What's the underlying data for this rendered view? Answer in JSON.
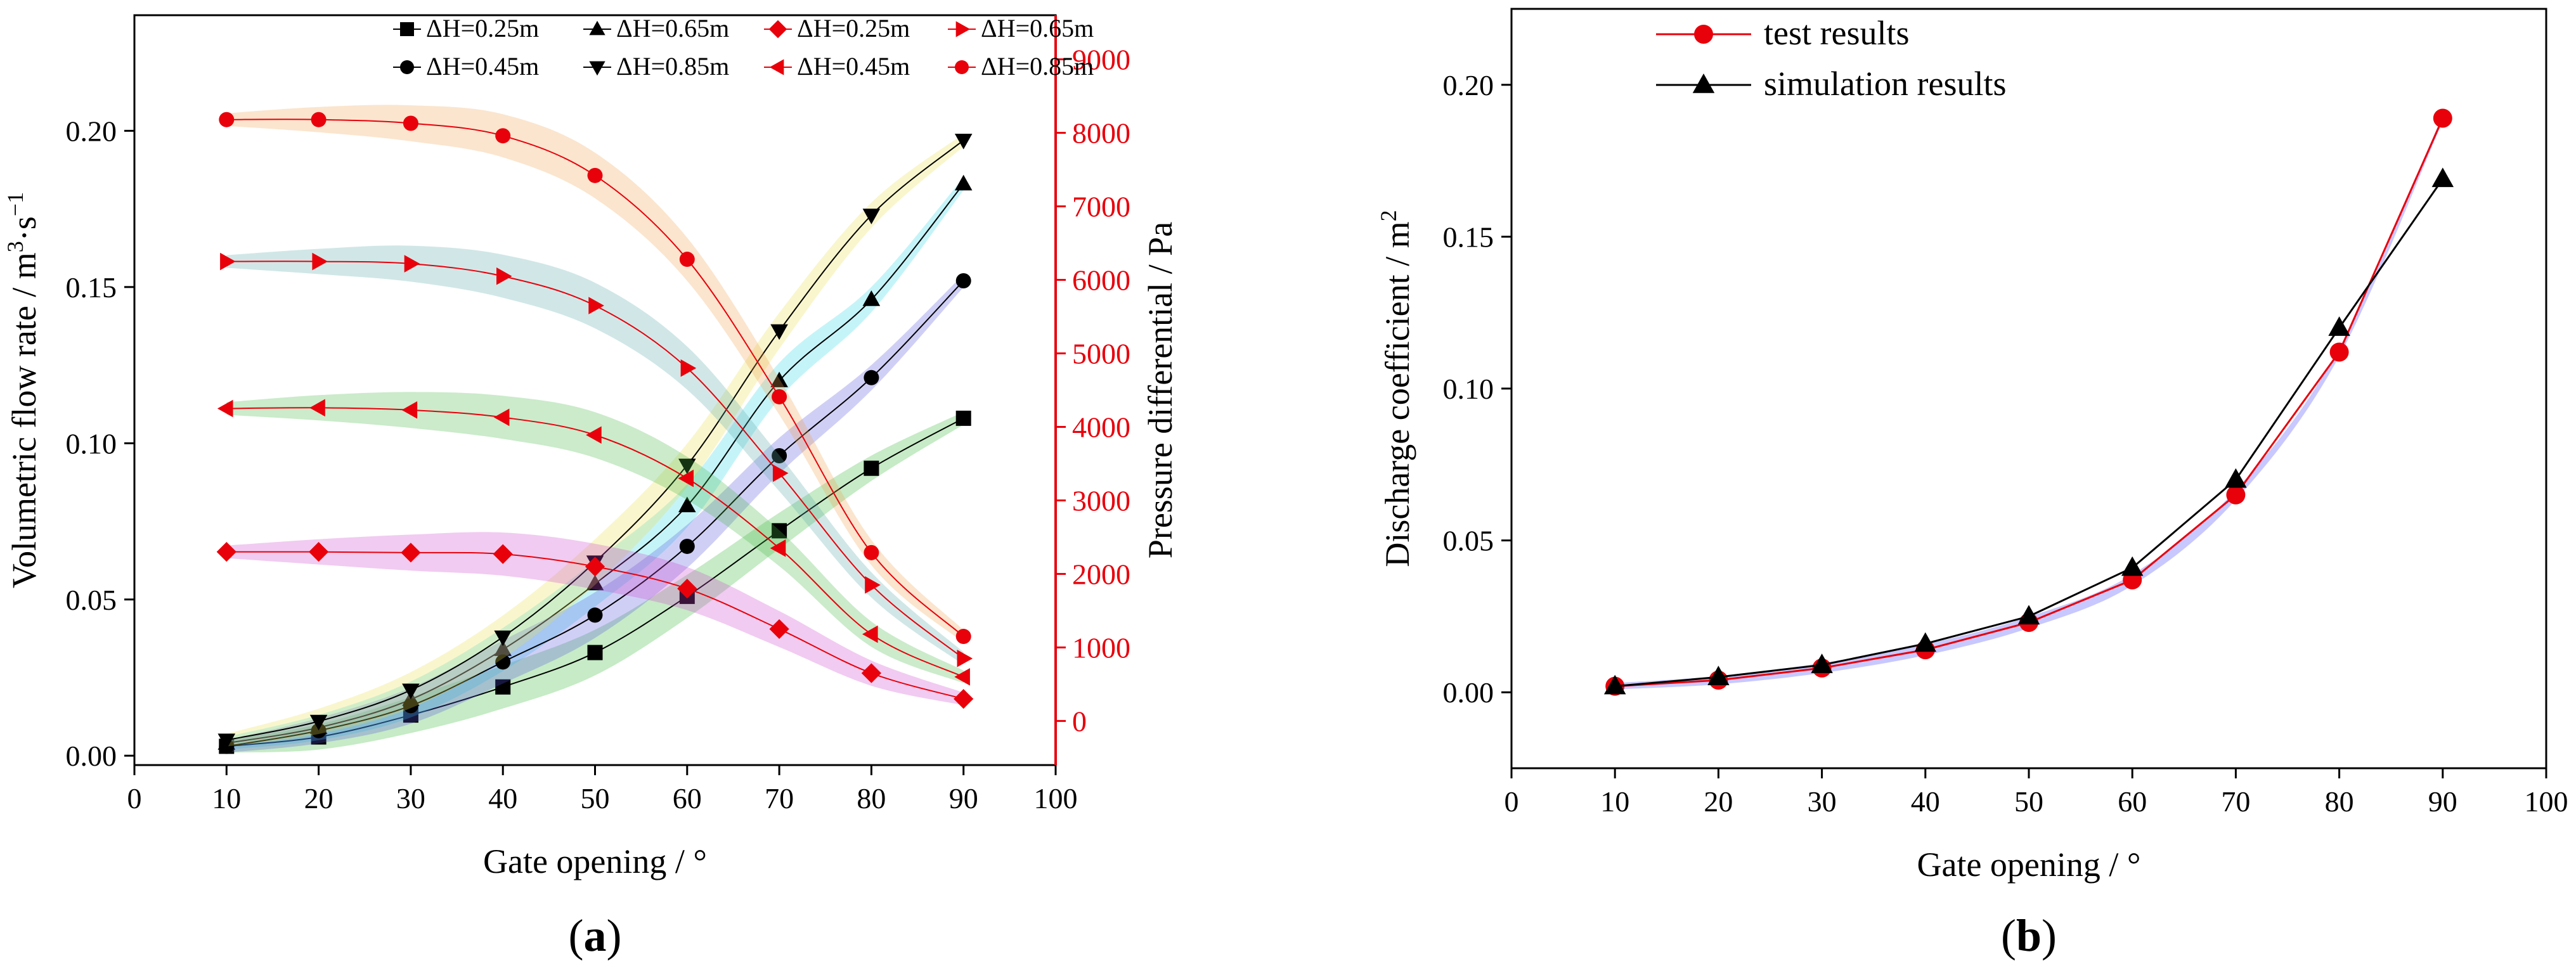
{
  "chart_data": [
    {
      "type": "line",
      "panel_label": {
        "text": "a",
        "open": "(",
        "close": ")"
      },
      "xlabel": "Gate opening / °",
      "ylabel": "Volumetric flow rate / m³·s⁻¹",
      "ylabel_parts": [
        "Volumetric flow rate / m",
        "3",
        "·s",
        "−1"
      ],
      "y2label": "Pressure differential / Pa",
      "xlim": [
        0,
        100
      ],
      "ylim": [
        -0.003,
        0.237
      ],
      "y2lim": [
        -600,
        9600
      ],
      "x_ticks": [
        "0",
        "10",
        "20",
        "30",
        "40",
        "50",
        "60",
        "70",
        "80",
        "90",
        "100"
      ],
      "y_ticks": [
        "0.00",
        "0.05",
        "0.10",
        "0.15",
        "0.20"
      ],
      "y2_ticks": [
        "0",
        "1000",
        "2000",
        "3000",
        "4000",
        "5000",
        "6000",
        "7000",
        "8000",
        "9000"
      ],
      "x": [
        10,
        20,
        30,
        40,
        50,
        60,
        70,
        80,
        90
      ],
      "legend_position": "top",
      "series": [
        {
          "name": "ΔH=0.25m",
          "axis": "left",
          "marker": "square",
          "color": "#000000",
          "band": "#33b833",
          "values": [
            0.003,
            0.006,
            0.013,
            0.022,
            0.033,
            0.051,
            0.072,
            0.092,
            0.108
          ]
        },
        {
          "name": "ΔH=0.65m",
          "axis": "left",
          "marker": "triangle-up",
          "color": "#000000",
          "band": "#2fd6e6",
          "values": [
            0.004,
            0.009,
            0.018,
            0.034,
            0.055,
            0.08,
            0.12,
            0.146,
            0.183
          ]
        },
        {
          "name": "ΔH=0.45m",
          "axis": "left",
          "marker": "circle",
          "color": "#000000",
          "band": "#5252e0",
          "values": [
            0.003,
            0.008,
            0.016,
            0.03,
            0.045,
            0.067,
            0.096,
            0.121,
            0.152
          ]
        },
        {
          "name": "ΔH=0.85m",
          "axis": "left",
          "marker": "triangle-down",
          "color": "#000000",
          "band": "#e8e04a",
          "values": [
            0.005,
            0.011,
            0.021,
            0.038,
            0.062,
            0.093,
            0.136,
            0.173,
            0.197
          ]
        },
        {
          "name": "ΔH=0.25m",
          "axis": "right",
          "marker": "diamond",
          "color": "#e8000b",
          "band": "#cc44cc",
          "values": [
            2300,
            2300,
            2290,
            2270,
            2100,
            1800,
            1250,
            650,
            300
          ]
        },
        {
          "name": "ΔH=0.65m",
          "axis": "right",
          "marker": "triangle-right",
          "color": "#e8000b",
          "band": "#5aa8a8",
          "values": [
            6250,
            6250,
            6220,
            6050,
            5650,
            4800,
            3370,
            1850,
            850
          ]
        },
        {
          "name": "ΔH=0.45m",
          "axis": "right",
          "marker": "triangle-left",
          "color": "#e8000b",
          "band": "#44b844",
          "values": [
            4250,
            4260,
            4230,
            4130,
            3890,
            3300,
            2350,
            1180,
            600
          ]
        },
        {
          "name": "ΔH=0.85m",
          "axis": "right",
          "marker": "circle",
          "color": "#e8000b",
          "band": "#f0a050",
          "values": [
            8180,
            8180,
            8130,
            7960,
            7420,
            6280,
            4410,
            2290,
            1150
          ]
        }
      ],
      "legend_rows": [
        [
          0,
          1,
          4,
          5
        ],
        [
          2,
          3,
          6,
          7
        ]
      ]
    },
    {
      "type": "line",
      "panel_label": {
        "text": "b",
        "open": "(",
        "close": ")"
      },
      "xlabel": "Gate opening / °",
      "ylabel": "Discharge coefficient / m²",
      "ylabel_parts": [
        "Discharge coefficient / m",
        "2"
      ],
      "xlim": [
        0,
        100
      ],
      "ylim": [
        -0.025,
        0.225
      ],
      "x_ticks": [
        "0",
        "10",
        "20",
        "30",
        "40",
        "50",
        "60",
        "70",
        "80",
        "90",
        "100"
      ],
      "y_ticks": [
        "0.00",
        "0.05",
        "0.10",
        "0.15",
        "0.20"
      ],
      "x": [
        10,
        20,
        30,
        40,
        50,
        60,
        70,
        80,
        90
      ],
      "legend_position": "top-left",
      "series": [
        {
          "name": "test results",
          "marker": "circle",
          "color": "#e8000b",
          "band": "#3a3aff",
          "values": [
            0.002,
            0.004,
            0.008,
            0.014,
            0.023,
            0.037,
            0.065,
            0.112,
            0.189
          ]
        },
        {
          "name": "simulation results",
          "marker": "triangle-up",
          "color": "#000000",
          "values": [
            0.002,
            0.005,
            0.009,
            0.016,
            0.025,
            0.041,
            0.07,
            0.12,
            0.169
          ]
        }
      ]
    }
  ]
}
